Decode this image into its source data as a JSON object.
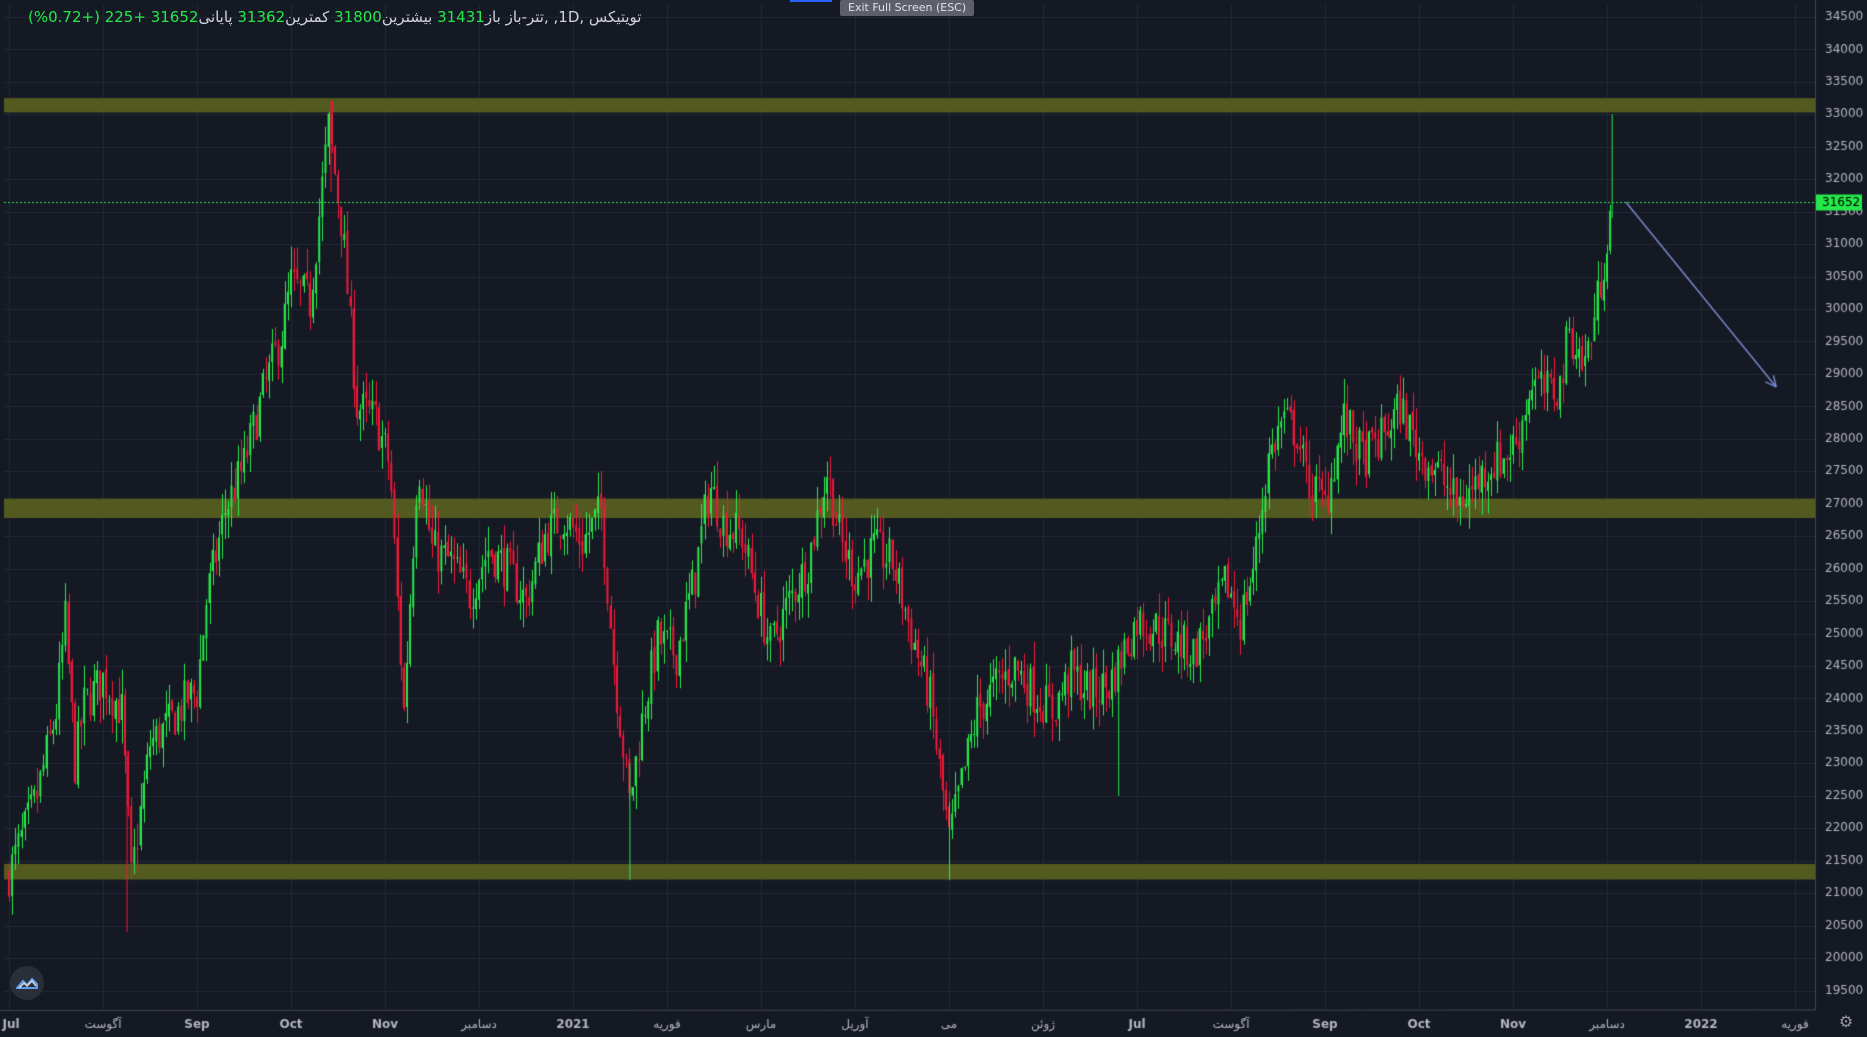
{
  "legend": {
    "symbol": "تویتیکس ,1D, ,تتر-باز",
    "open_label": "باز",
    "open": "31431",
    "high_label": "بیشترین",
    "high": "31800",
    "low_label": "کمترین",
    "low": "31362",
    "close_label": "پایانی",
    "close": "31652",
    "change": "+225 (+0.72%)"
  },
  "toolbar": {
    "exit_fullscreen": "Exit Full Screen (ESC)"
  },
  "colors": {
    "up": "#26e84a",
    "down": "#f0183a",
    "zone": "#535a20",
    "arrow": "#7886c8",
    "background": "#151924"
  },
  "chart_data": {
    "type": "candlestick",
    "title": "",
    "current_price": 31652,
    "price_axis_labels": [
      "34500",
      "34000",
      "33500",
      "33000",
      "32500",
      "32000",
      "31500",
      "31000",
      "30500",
      "30000",
      "29500",
      "29000",
      "28500",
      "28000",
      "27500",
      "27000",
      "26500",
      "26000",
      "25500",
      "25000",
      "24500",
      "24000",
      "23500",
      "23000",
      "22500",
      "22000",
      "21500",
      "21000",
      "20500",
      "20000",
      "19500"
    ],
    "ylim": [
      19200,
      34700
    ],
    "time_axis_labels": [
      "Jul",
      "آگوست",
      "Sep",
      "Oct",
      "Nov",
      "دسامبر",
      "2021",
      "فوریه",
      "مارس",
      "آوریل",
      "می",
      "ژوئن",
      "Jul",
      "آگوست",
      "Sep",
      "Oct",
      "Nov",
      "دسامبر",
      "2022",
      "فوریه"
    ],
    "zones": [
      {
        "from": 33030,
        "to": 33250
      },
      {
        "from": 26780,
        "to": 27080
      },
      {
        "from": 21210,
        "to": 21450
      }
    ],
    "trend_arrow": {
      "from": {
        "month": 17.2,
        "price": 31650
      },
      "to": {
        "month": 18.8,
        "price": 28800
      }
    },
    "close_path": [
      [
        0,
        21300
      ],
      [
        0.3,
        22500
      ],
      [
        0.5,
        23800
      ],
      [
        0.6,
        25200
      ],
      [
        0.7,
        23000
      ],
      [
        0.8,
        23900
      ],
      [
        1.0,
        24300
      ],
      [
        1.2,
        23800
      ],
      [
        1.3,
        21200
      ],
      [
        1.5,
        23300
      ],
      [
        1.7,
        23600
      ],
      [
        1.9,
        24000
      ],
      [
        2.0,
        24100
      ],
      [
        2.1,
        25500
      ],
      [
        2.3,
        26900
      ],
      [
        2.5,
        27600
      ],
      [
        2.7,
        28700
      ],
      [
        2.9,
        29600
      ],
      [
        3.0,
        30400
      ],
      [
        3.2,
        30100
      ],
      [
        3.4,
        32800
      ],
      [
        3.55,
        31200
      ],
      [
        3.7,
        28500
      ],
      [
        3.9,
        28300
      ],
      [
        4.05,
        27600
      ],
      [
        4.2,
        23800
      ],
      [
        4.35,
        27700
      ],
      [
        4.5,
        26300
      ],
      [
        4.7,
        26100
      ],
      [
        4.9,
        25600
      ],
      [
        5.1,
        26300
      ],
      [
        5.3,
        26000
      ],
      [
        5.5,
        25500
      ],
      [
        5.7,
        26500
      ],
      [
        5.9,
        26800
      ],
      [
        6.1,
        26400
      ],
      [
        6.3,
        26900
      ],
      [
        6.45,
        24300
      ],
      [
        6.6,
        22400
      ],
      [
        6.75,
        23800
      ],
      [
        6.9,
        24900
      ],
      [
        7.1,
        24700
      ],
      [
        7.3,
        25900
      ],
      [
        7.45,
        27300
      ],
      [
        7.6,
        26700
      ],
      [
        7.8,
        26500
      ],
      [
        7.95,
        25600
      ],
      [
        8.1,
        24800
      ],
      [
        8.3,
        25500
      ],
      [
        8.5,
        26100
      ],
      [
        8.7,
        27500
      ],
      [
        8.85,
        26400
      ],
      [
        9.0,
        25900
      ],
      [
        9.2,
        26300
      ],
      [
        9.4,
        26100
      ],
      [
        9.6,
        25000
      ],
      [
        9.8,
        24000
      ],
      [
        10.0,
        21800
      ],
      [
        10.15,
        22800
      ],
      [
        10.3,
        23800
      ],
      [
        10.5,
        24200
      ],
      [
        10.7,
        24500
      ],
      [
        10.9,
        24100
      ],
      [
        11.1,
        23800
      ],
      [
        11.3,
        24400
      ],
      [
        11.5,
        24100
      ],
      [
        11.7,
        24200
      ],
      [
        11.85,
        24700
      ],
      [
        12.0,
        25200
      ],
      [
        12.2,
        25100
      ],
      [
        12.4,
        24900
      ],
      [
        12.6,
        24700
      ],
      [
        12.8,
        25200
      ],
      [
        12.95,
        25800
      ],
      [
        13.1,
        25200
      ],
      [
        13.25,
        26100
      ],
      [
        13.4,
        27700
      ],
      [
        13.55,
        28300
      ],
      [
        13.7,
        28100
      ],
      [
        13.8,
        27400
      ],
      [
        14.0,
        27000
      ],
      [
        14.2,
        28300
      ],
      [
        14.4,
        27700
      ],
      [
        14.6,
        28000
      ],
      [
        14.8,
        28500
      ],
      [
        15.0,
        27800
      ],
      [
        15.2,
        27500
      ],
      [
        15.4,
        27000
      ],
      [
        15.55,
        27200
      ],
      [
        15.75,
        27600
      ],
      [
        15.9,
        27700
      ],
      [
        16.05,
        28000
      ],
      [
        16.2,
        28900
      ],
      [
        16.35,
        28700
      ],
      [
        16.5,
        28800
      ],
      [
        16.6,
        29700
      ],
      [
        16.75,
        29100
      ],
      [
        16.85,
        29700
      ],
      [
        16.95,
        30600
      ],
      [
        17.05,
        31650
      ]
    ]
  }
}
